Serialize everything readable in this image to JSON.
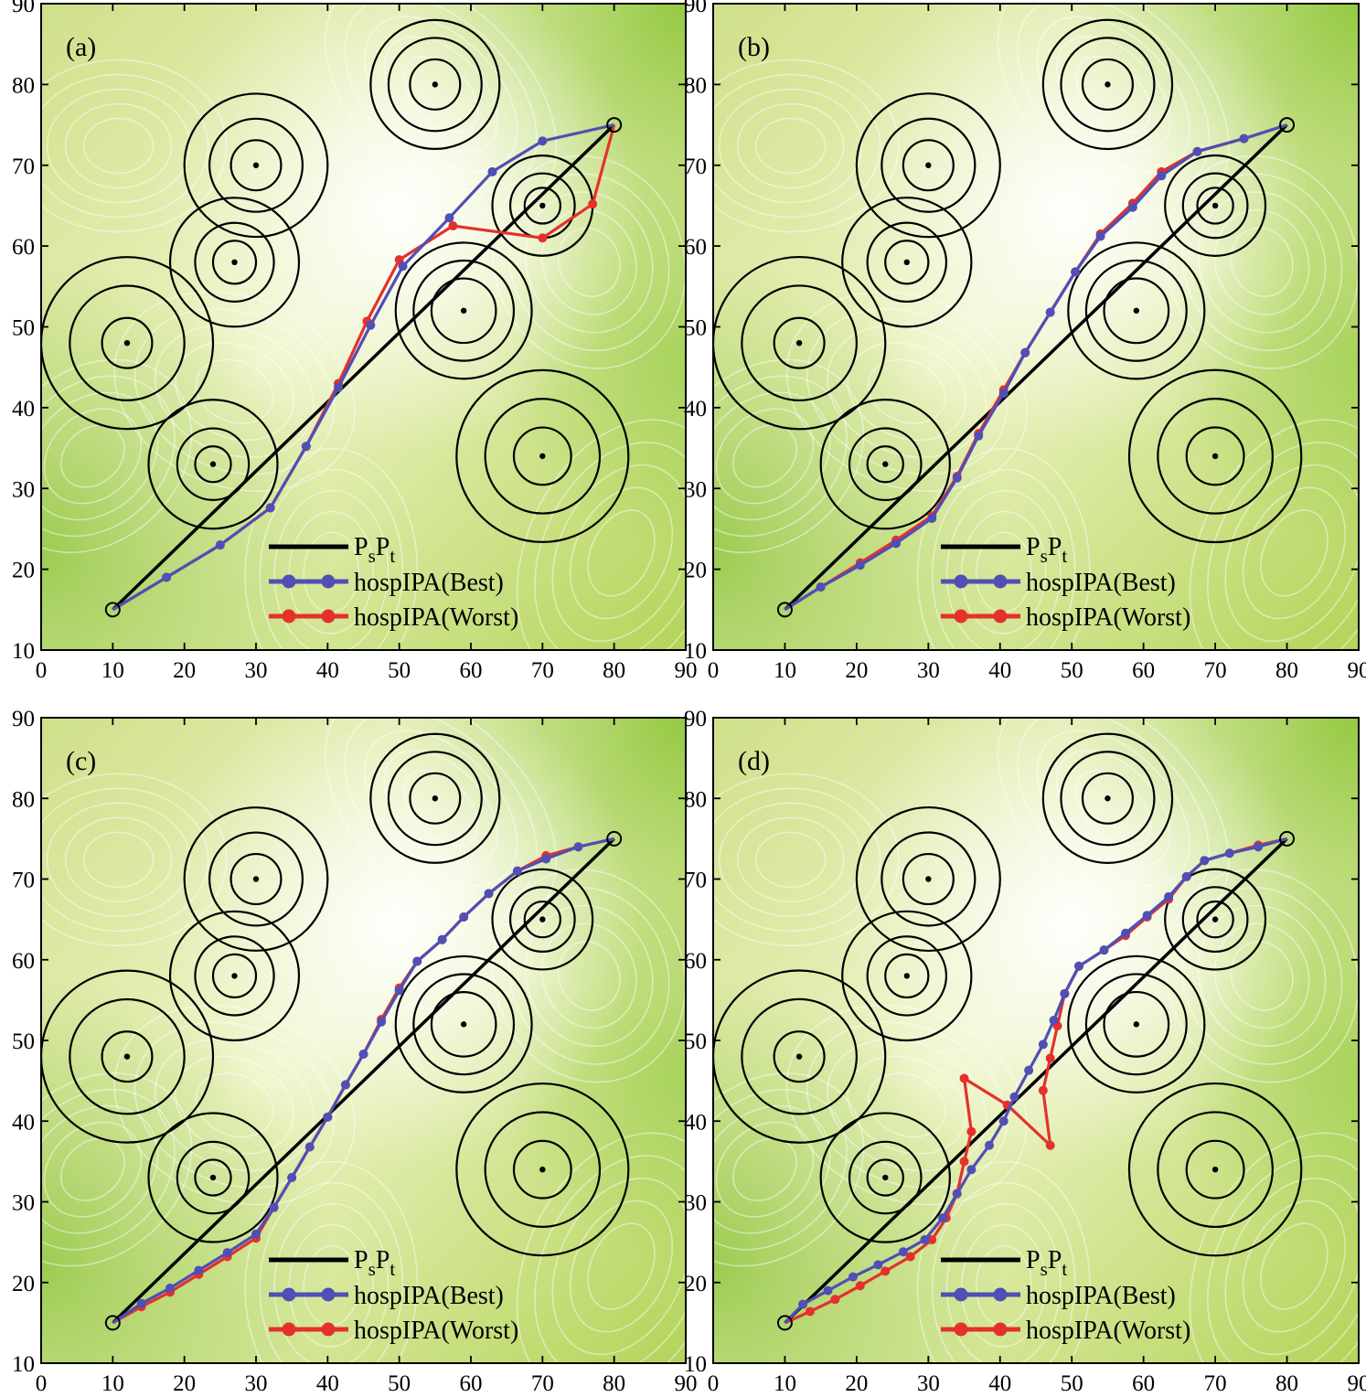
{
  "chart_data": [
    {
      "type": "line",
      "panel_label": "(a)",
      "xlim": [
        0,
        90
      ],
      "ylim": [
        10,
        90
      ],
      "x_ticks": [
        "0",
        "10",
        "20",
        "30",
        "40",
        "50",
        "60",
        "70",
        "80",
        "90"
      ],
      "y_ticks": [
        "10",
        "20",
        "30",
        "40",
        "50",
        "60",
        "70",
        "80",
        "90"
      ],
      "legend": {
        "placement": "bottom-center",
        "entries": [
          {
            "main": "P",
            "sub1": "s",
            "mid": "P",
            "sub2": "t"
          },
          {
            "text": "hospIPA(Best)"
          },
          {
            "text": "hospIPA(Worst)"
          }
        ]
      },
      "start": [
        10,
        15
      ],
      "target": [
        80,
        75
      ],
      "threats": [
        {
          "x": 55,
          "y": 80,
          "radii": [
            3.5,
            6.5,
            9
          ]
        },
        {
          "x": 30,
          "y": 70,
          "radii": [
            3.5,
            6.5,
            10
          ]
        },
        {
          "x": 27,
          "y": 58,
          "radii": [
            3,
            5.5,
            9
          ]
        },
        {
          "x": 12,
          "y": 48,
          "radii": [
            3.5,
            8,
            12
          ]
        },
        {
          "x": 59,
          "y": 52,
          "radii": [
            4.5,
            7,
            9.5
          ]
        },
        {
          "x": 70,
          "y": 65,
          "radii": [
            2.5,
            4.5,
            7
          ]
        },
        {
          "x": 24,
          "y": 33,
          "radii": [
            2.5,
            5,
            9
          ]
        },
        {
          "x": 70,
          "y": 34,
          "radii": [
            4,
            8,
            12
          ]
        }
      ],
      "series": [
        {
          "name": "hospIPA(Best)",
          "color": "#4f4fb5",
          "points": [
            [
              10,
              15
            ],
            [
              17.5,
              19
            ],
            [
              25,
              23
            ],
            [
              32,
              27.6
            ],
            [
              37,
              35.2
            ],
            [
              41.5,
              42.5
            ],
            [
              46,
              50.2
            ],
            [
              50.5,
              57.5
            ],
            [
              57,
              63.5
            ],
            [
              63,
              69.2
            ],
            [
              70,
              73
            ],
            [
              80,
              75
            ]
          ]
        },
        {
          "name": "hospIPA(Worst)",
          "color": "#e4312b",
          "points": [
            [
              10,
              15
            ],
            [
              17.5,
              19
            ],
            [
              25,
              23
            ],
            [
              32,
              27.6
            ],
            [
              37,
              35.2
            ],
            [
              41.5,
              43
            ],
            [
              45.5,
              50.7
            ],
            [
              50,
              58.3
            ],
            [
              57.5,
              62.5
            ],
            [
              70,
              61
            ],
            [
              77,
              65.2
            ],
            [
              80,
              75
            ]
          ]
        }
      ]
    },
    {
      "type": "line",
      "panel_label": "(b)",
      "xlim": [
        0,
        90
      ],
      "ylim": [
        10,
        90
      ],
      "x_ticks": [
        "0",
        "10",
        "20",
        "30",
        "40",
        "50",
        "60",
        "70",
        "80",
        "90"
      ],
      "y_ticks": [
        "10",
        "20",
        "30",
        "40",
        "50",
        "60",
        "70",
        "80",
        "90"
      ],
      "legend": {
        "placement": "bottom-center",
        "entries": [
          {
            "main": "P",
            "sub1": "s",
            "mid": "P",
            "sub2": "t"
          },
          {
            "text": "hospIPA(Best)"
          },
          {
            "text": "hospIPA(Worst)"
          }
        ]
      },
      "start": [
        10,
        15
      ],
      "target": [
        80,
        75
      ],
      "threats": [
        {
          "x": 55,
          "y": 80,
          "radii": [
            3.5,
            6.5,
            9
          ]
        },
        {
          "x": 30,
          "y": 70,
          "radii": [
            3.5,
            6.5,
            10
          ]
        },
        {
          "x": 27,
          "y": 58,
          "radii": [
            3,
            5.5,
            9
          ]
        },
        {
          "x": 12,
          "y": 48,
          "radii": [
            3.5,
            8,
            12
          ]
        },
        {
          "x": 59,
          "y": 52,
          "radii": [
            4.5,
            7,
            9.5
          ]
        },
        {
          "x": 70,
          "y": 65,
          "radii": [
            2.5,
            4.5,
            7
          ]
        },
        {
          "x": 24,
          "y": 33,
          "radii": [
            2.5,
            5,
            9
          ]
        },
        {
          "x": 70,
          "y": 34,
          "radii": [
            4,
            8,
            12
          ]
        }
      ],
      "series": [
        {
          "name": "hospIPA(Best)",
          "color": "#4f4fb5",
          "points": [
            [
              10,
              15
            ],
            [
              15,
              17.8
            ],
            [
              20.5,
              20.5
            ],
            [
              25.5,
              23.2
            ],
            [
              30.5,
              26.3
            ],
            [
              34,
              31.3
            ],
            [
              37,
              36.5
            ],
            [
              40.5,
              41.8
            ],
            [
              43.5,
              46.8
            ],
            [
              47,
              51.8
            ],
            [
              50.5,
              56.8
            ],
            [
              54,
              61.2
            ],
            [
              58.5,
              64.8
            ],
            [
              62.5,
              68.7
            ],
            [
              67.5,
              71.7
            ],
            [
              74,
              73.3
            ],
            [
              80,
              75
            ]
          ]
        },
        {
          "name": "hospIPA(Worst)",
          "color": "#e4312b",
          "points": [
            [
              10,
              15
            ],
            [
              15,
              17.8
            ],
            [
              20.5,
              20.8
            ],
            [
              25.5,
              23.6
            ],
            [
              30.5,
              26.6
            ],
            [
              34,
              31.5
            ],
            [
              37,
              36.8
            ],
            [
              40.5,
              42.2
            ],
            [
              43.5,
              46.8
            ],
            [
              47,
              51.8
            ],
            [
              50.5,
              56.8
            ],
            [
              54,
              61.5
            ],
            [
              58.5,
              65.3
            ],
            [
              62.5,
              69.2
            ],
            [
              67.5,
              71.7
            ],
            [
              74,
              73.3
            ],
            [
              80,
              75
            ]
          ]
        }
      ]
    },
    {
      "type": "line",
      "panel_label": "(c)",
      "xlim": [
        0,
        90
      ],
      "ylim": [
        10,
        90
      ],
      "x_ticks": [
        "0",
        "10",
        "20",
        "30",
        "40",
        "50",
        "60",
        "70",
        "80",
        "90"
      ],
      "y_ticks": [
        "10",
        "20",
        "30",
        "40",
        "50",
        "60",
        "70",
        "80",
        "90"
      ],
      "legend": {
        "placement": "bottom-center",
        "entries": [
          {
            "main": "P",
            "sub1": "s",
            "mid": "P",
            "sub2": "t"
          },
          {
            "text": "hospIPA(Best)"
          },
          {
            "text": "hospIPA(Worst)"
          }
        ]
      },
      "start": [
        10,
        15
      ],
      "target": [
        80,
        75
      ],
      "threats": [
        {
          "x": 55,
          "y": 80,
          "radii": [
            3.5,
            6.5,
            9
          ]
        },
        {
          "x": 30,
          "y": 70,
          "radii": [
            3.5,
            6.5,
            10
          ]
        },
        {
          "x": 27,
          "y": 58,
          "radii": [
            3,
            5.5,
            9
          ]
        },
        {
          "x": 12,
          "y": 48,
          "radii": [
            3.5,
            8,
            12
          ]
        },
        {
          "x": 59,
          "y": 52,
          "radii": [
            4.5,
            7,
            9.5
          ]
        },
        {
          "x": 70,
          "y": 65,
          "radii": [
            2.5,
            4.5,
            7
          ]
        },
        {
          "x": 24,
          "y": 33,
          "radii": [
            2.5,
            5,
            9
          ]
        },
        {
          "x": 70,
          "y": 34,
          "radii": [
            4,
            8,
            12
          ]
        }
      ],
      "series": [
        {
          "name": "hospIPA(Best)",
          "color": "#4f4fb5",
          "points": [
            [
              10,
              15
            ],
            [
              14,
              17.4
            ],
            [
              18,
              19.3
            ],
            [
              22,
              21.5
            ],
            [
              26,
              23.7
            ],
            [
              30,
              26
            ],
            [
              32.5,
              29.3
            ],
            [
              35,
              33
            ],
            [
              37.5,
              36.8
            ],
            [
              40,
              40.5
            ],
            [
              42.5,
              44.5
            ],
            [
              45,
              48.3
            ],
            [
              47.5,
              52.3
            ],
            [
              50,
              56.2
            ],
            [
              52.5,
              59.8
            ],
            [
              56,
              62.5
            ],
            [
              59,
              65.3
            ],
            [
              62.5,
              68.2
            ],
            [
              66.5,
              71
            ],
            [
              70.5,
              72.5
            ],
            [
              75,
              74
            ],
            [
              80,
              75
            ]
          ]
        },
        {
          "name": "hospIPA(Worst)",
          "color": "#e4312b",
          "points": [
            [
              10,
              15
            ],
            [
              14,
              17
            ],
            [
              18,
              18.8
            ],
            [
              22,
              21
            ],
            [
              26,
              23.2
            ],
            [
              30,
              25.5
            ],
            [
              32.5,
              29.3
            ],
            [
              35,
              33
            ],
            [
              37.5,
              36.8
            ],
            [
              40,
              40.5
            ],
            [
              42.5,
              44.5
            ],
            [
              45,
              48.3
            ],
            [
              47.5,
              52.6
            ],
            [
              50,
              56.5
            ],
            [
              52.5,
              59.8
            ],
            [
              56,
              62.5
            ],
            [
              59,
              65.3
            ],
            [
              62.5,
              68.2
            ],
            [
              66.5,
              71
            ],
            [
              70.5,
              72.9
            ],
            [
              75,
              74
            ],
            [
              80,
              75
            ]
          ]
        }
      ]
    },
    {
      "type": "line",
      "panel_label": "(d)",
      "xlim": [
        0,
        90
      ],
      "ylim": [
        10,
        90
      ],
      "x_ticks": [
        "0",
        "10",
        "20",
        "30",
        "40",
        "50",
        "60",
        "70",
        "80",
        "90"
      ],
      "y_ticks": [
        "10",
        "20",
        "30",
        "40",
        "50",
        "60",
        "70",
        "80",
        "90"
      ],
      "legend": {
        "placement": "bottom-center",
        "entries": [
          {
            "main": "P",
            "sub1": "s",
            "mid": "P",
            "sub2": "t"
          },
          {
            "text": "hospIPA(Best)"
          },
          {
            "text": "hospIPA(Worst)"
          }
        ]
      },
      "start": [
        10,
        15
      ],
      "target": [
        80,
        75
      ],
      "threats": [
        {
          "x": 55,
          "y": 80,
          "radii": [
            3.5,
            6.5,
            9
          ]
        },
        {
          "x": 30,
          "y": 70,
          "radii": [
            3.5,
            6.5,
            10
          ]
        },
        {
          "x": 27,
          "y": 58,
          "radii": [
            3,
            5.5,
            9
          ]
        },
        {
          "x": 12,
          "y": 48,
          "radii": [
            3.5,
            8,
            12
          ]
        },
        {
          "x": 59,
          "y": 52,
          "radii": [
            4.5,
            7,
            9.5
          ]
        },
        {
          "x": 70,
          "y": 65,
          "radii": [
            2.5,
            4.5,
            7
          ]
        },
        {
          "x": 24,
          "y": 33,
          "radii": [
            2.5,
            5,
            9
          ]
        },
        {
          "x": 70,
          "y": 34,
          "radii": [
            4,
            8,
            12
          ]
        }
      ],
      "series": [
        {
          "name": "hospIPA(Best)",
          "color": "#4f4fb5",
          "points": [
            [
              10,
              15
            ],
            [
              12.5,
              17.3
            ],
            [
              16,
              19
            ],
            [
              19.5,
              20.7
            ],
            [
              23,
              22.2
            ],
            [
              26.5,
              23.8
            ],
            [
              29.5,
              25.3
            ],
            [
              32,
              28
            ],
            [
              34,
              31
            ],
            [
              36,
              34
            ],
            [
              38.5,
              37
            ],
            [
              40.5,
              40
            ],
            [
              42,
              43
            ],
            [
              44,
              46.3
            ],
            [
              46,
              49.5
            ],
            [
              47.5,
              52.5
            ],
            [
              49,
              55.8
            ],
            [
              51,
              59.2
            ],
            [
              54.5,
              61.2
            ],
            [
              57.5,
              63.3
            ],
            [
              60.5,
              65.5
            ],
            [
              63.5,
              67.8
            ],
            [
              66,
              70.3
            ],
            [
              68.5,
              72.3
            ],
            [
              72,
              73.2
            ],
            [
              76,
              74
            ],
            [
              80,
              75
            ]
          ]
        },
        {
          "name": "hospIPA(Worst)",
          "color": "#e4312b",
          "points": [
            [
              10,
              15
            ],
            [
              13.5,
              16.4
            ],
            [
              17,
              17.9
            ],
            [
              20.5,
              19.6
            ],
            [
              24,
              21.4
            ],
            [
              27.5,
              23.2
            ],
            [
              30.5,
              25.3
            ],
            [
              32.5,
              28
            ],
            [
              34,
              31
            ],
            [
              35,
              35
            ],
            [
              36,
              38.7
            ],
            [
              35,
              45.3
            ],
            [
              41,
              42
            ],
            [
              47,
              37
            ],
            [
              46,
              43.8
            ],
            [
              47,
              47.8
            ],
            [
              48,
              51.8
            ],
            [
              49,
              55.8
            ],
            [
              51,
              59.2
            ],
            [
              54.5,
              61.2
            ],
            [
              57.5,
              63
            ],
            [
              60.5,
              65.3
            ],
            [
              63.5,
              67.5
            ],
            [
              66,
              70.3
            ],
            [
              68.5,
              72.3
            ],
            [
              72,
              73.2
            ],
            [
              76,
              74.2
            ],
            [
              80,
              75
            ]
          ]
        }
      ]
    }
  ]
}
